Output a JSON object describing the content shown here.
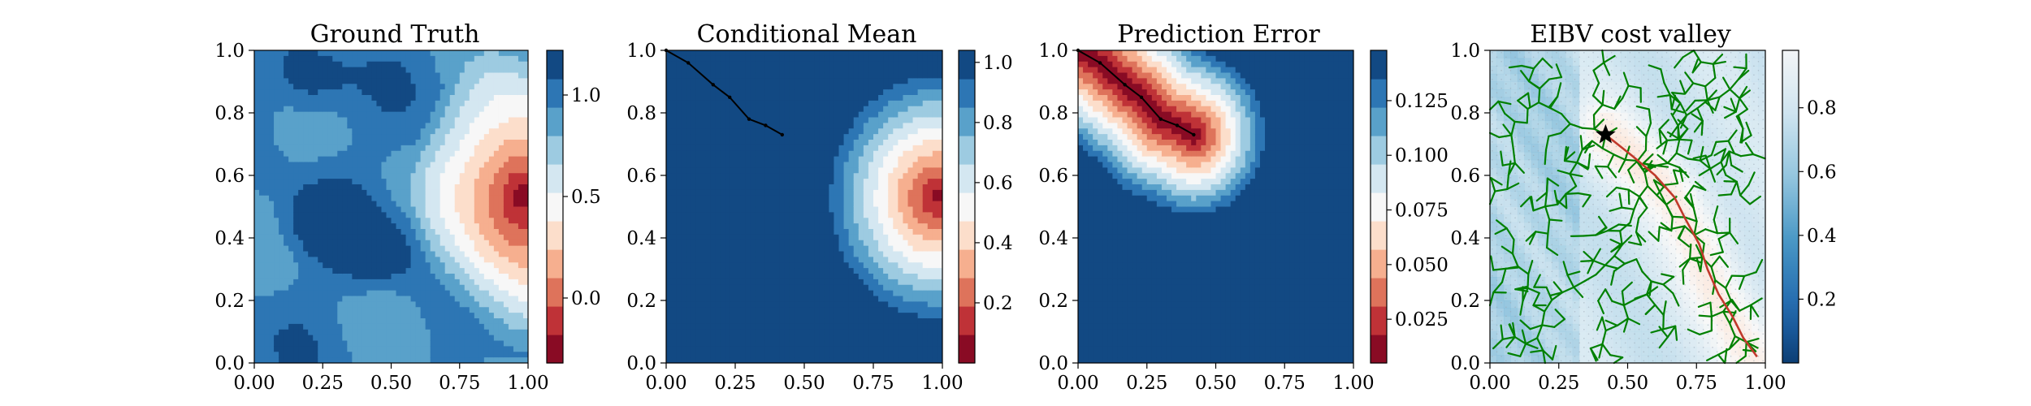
{
  "chart_data": [
    {
      "type": "heatmap",
      "title": "Ground Truth",
      "xlim": [
        0,
        1
      ],
      "ylim": [
        0,
        1
      ],
      "xticks": [
        "0.00",
        "0.25",
        "0.50",
        "0.75",
        "1.00"
      ],
      "yticks": [
        "0.0",
        "0.2",
        "0.4",
        "0.6",
        "0.8",
        "1.0"
      ],
      "field": {
        "background": 0.8,
        "hotspot_center": [
          0.98,
          0.53
        ],
        "hotspot_min": -0.28,
        "hotspot_radius": 0.42,
        "low_blob_centers": [
          [
            0.25,
            0.45
          ],
          [
            0.45,
            0.35
          ],
          [
            0.2,
            0.9
          ]
        ]
      },
      "colorbar": {
        "ticks": [
          "0.0",
          "0.5",
          "1.0"
        ],
        "tick_values": [
          0.0,
          0.5,
          1.0
        ],
        "range": [
          -0.32,
          1.22
        ],
        "levels": 11,
        "cmap": "RdBu"
      }
    },
    {
      "type": "heatmap",
      "title": "Conditional Mean",
      "xlim": [
        0,
        1
      ],
      "ylim": [
        0,
        1
      ],
      "xticks": [
        "0.00",
        "0.25",
        "0.50",
        "0.75",
        "1.00"
      ],
      "yticks": [
        "0.0",
        "0.2",
        "0.4",
        "0.6",
        "0.8",
        "1.0"
      ],
      "field": {
        "background": 1.05,
        "hotspot_center": [
          0.98,
          0.53
        ],
        "hotspot_min": 0.05,
        "hotspot_radius": 0.43
      },
      "path": [
        [
          0.0,
          1.0
        ],
        [
          0.08,
          0.96
        ],
        [
          0.17,
          0.89
        ],
        [
          0.23,
          0.85
        ],
        [
          0.3,
          0.78
        ],
        [
          0.36,
          0.76
        ],
        [
          0.42,
          0.73
        ]
      ],
      "colorbar": {
        "ticks": [
          "0.2",
          "0.4",
          "0.6",
          "0.8",
          "1.0"
        ],
        "tick_values": [
          0.2,
          0.4,
          0.6,
          0.8,
          1.0
        ],
        "range": [
          0.0,
          1.04
        ],
        "levels": 11,
        "cmap": "RdBu"
      }
    },
    {
      "type": "heatmap",
      "title": "Prediction Error",
      "xlim": [
        0,
        1
      ],
      "ylim": [
        0,
        1
      ],
      "xticks": [
        "0.00",
        "0.25",
        "0.50",
        "0.75",
        "1.00"
      ],
      "yticks": [
        "0.0",
        "0.2",
        "0.4",
        "0.6",
        "0.8",
        "1.0"
      ],
      "field": {
        "background": 0.148,
        "minimum": 0.005,
        "radius": 0.28
      },
      "path": [
        [
          0.0,
          1.0
        ],
        [
          0.08,
          0.96
        ],
        [
          0.17,
          0.89
        ],
        [
          0.23,
          0.85
        ],
        [
          0.3,
          0.78
        ],
        [
          0.36,
          0.76
        ],
        [
          0.42,
          0.73
        ]
      ],
      "colorbar": {
        "ticks": [
          "0.025",
          "0.050",
          "0.075",
          "0.100",
          "0.125"
        ],
        "tick_values": [
          0.025,
          0.05,
          0.075,
          0.1,
          0.125
        ],
        "range": [
          0.005,
          0.148
        ],
        "levels": 11,
        "cmap": "RdBu"
      }
    },
    {
      "type": "heatmap",
      "title": "EIBV cost valley",
      "xlim": [
        0,
        1
      ],
      "ylim": [
        0,
        1
      ],
      "xticks": [
        "0.00",
        "0.25",
        "0.50",
        "0.75",
        "1.00"
      ],
      "yticks": [
        "0.0",
        "0.2",
        "0.4",
        "0.6",
        "0.8",
        "1.0"
      ],
      "start": [
        0.42,
        0.73
      ],
      "tree_edge_color": "#008000",
      "best_path_color": "#c0392b",
      "best_path": [
        [
          0.42,
          0.73
        ],
        [
          0.52,
          0.66
        ],
        [
          0.6,
          0.6
        ],
        [
          0.67,
          0.53
        ],
        [
          0.71,
          0.46
        ],
        [
          0.76,
          0.38
        ],
        [
          0.79,
          0.3
        ],
        [
          0.83,
          0.22
        ],
        [
          0.88,
          0.15
        ],
        [
          0.92,
          0.08
        ],
        [
          0.97,
          0.02
        ]
      ],
      "colorbar": {
        "ticks": [
          "0.2",
          "0.4",
          "0.6",
          "0.8"
        ],
        "tick_values": [
          0.2,
          0.4,
          0.6,
          0.8
        ],
        "range": [
          0.0,
          0.98
        ],
        "cmap": "RdBu"
      }
    }
  ]
}
